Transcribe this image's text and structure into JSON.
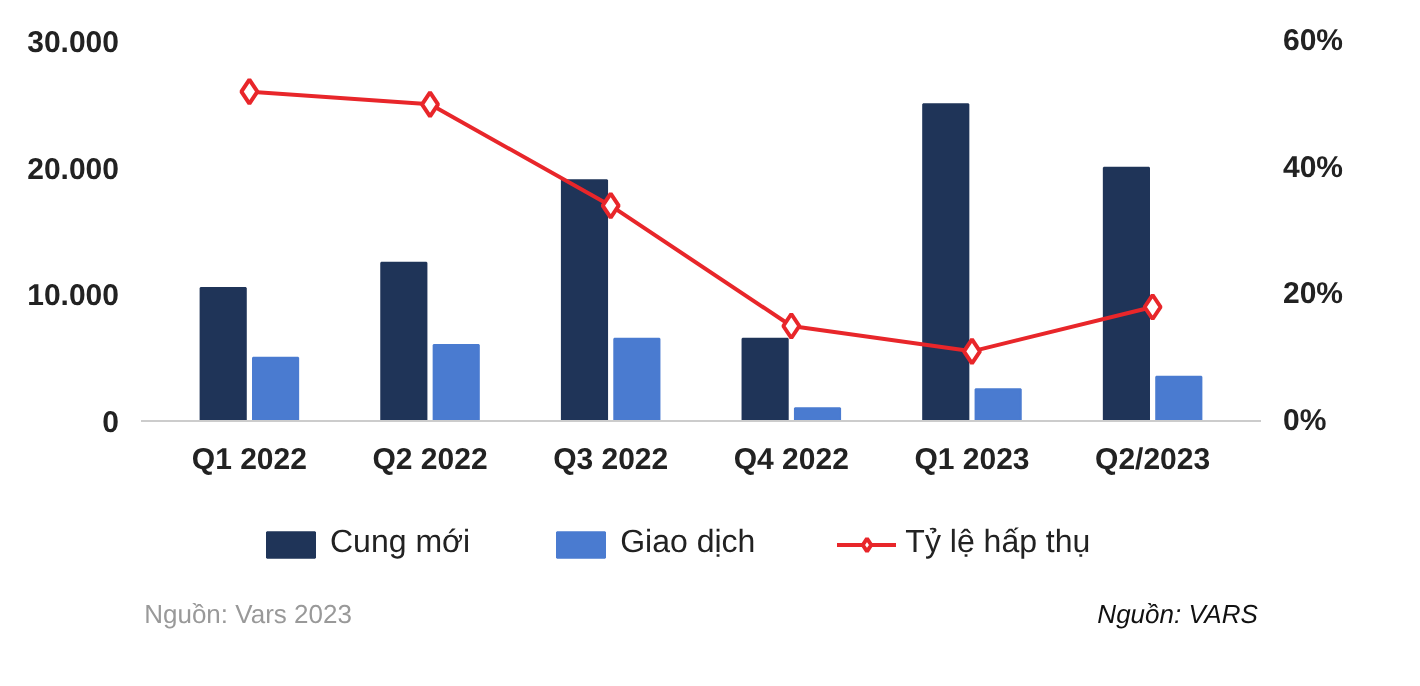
{
  "chart_data": {
    "type": "bar",
    "categories": [
      "Q1 2022",
      "Q2 2022",
      "Q3 2022",
      "Q4 2022",
      "Q1 2023",
      "Q2/2023"
    ],
    "series": [
      {
        "name": "Cung mới",
        "color": "#1f3458",
        "values": [
          10500,
          12500,
          19000,
          6500,
          25000,
          20000
        ]
      },
      {
        "name": "Giao dịch",
        "color": "#4a7bd0",
        "values": [
          5000,
          6000,
          6500,
          1000,
          2500,
          3500
        ]
      },
      {
        "name": "Tỷ lệ hấp thụ",
        "type": "line",
        "axis": "y2",
        "color": "#e8262a",
        "marker": "diamond",
        "values": [
          52,
          50,
          34,
          15,
          11,
          18
        ]
      }
    ],
    "ylim": [
      0,
      30000
    ],
    "yticks": [
      {
        "value": 0,
        "label": "0"
      },
      {
        "value": 10000,
        "label": "10.000"
      },
      {
        "value": 20000,
        "label": "20.000"
      },
      {
        "value": 30000,
        "label": "30.000"
      }
    ],
    "y2lim": [
      0,
      60
    ],
    "y2ticks": [
      {
        "value": 0,
        "label": "0%"
      },
      {
        "value": 20,
        "label": "20%"
      },
      {
        "value": 40,
        "label": "40%"
      },
      {
        "value": 60,
        "label": "60%"
      }
    ],
    "grid": false,
    "legend": "bottom",
    "annotations": [
      "Nguồn: Vars 2023",
      "Nguồn: VARS"
    ]
  }
}
